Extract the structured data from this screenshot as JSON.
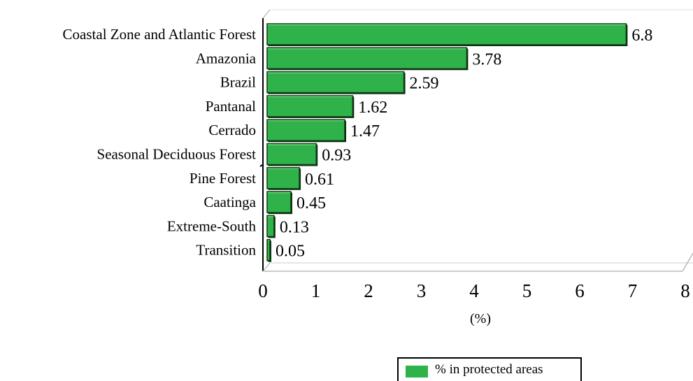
{
  "chart_data": {
    "type": "bar",
    "orientation": "horizontal",
    "categories": [
      "Coastal Zone and Atlantic Forest",
      "Amazonia",
      "Brazil",
      "Pantanal",
      "Cerrado",
      "Seasonal Deciduous Forest",
      "Pine Forest",
      "Caatinga",
      "Extreme-South",
      "Transition"
    ],
    "values": [
      6.8,
      3.78,
      2.59,
      1.62,
      1.47,
      0.93,
      0.61,
      0.45,
      0.13,
      0.05
    ],
    "value_labels": [
      "6.8",
      "3.78",
      "2.59",
      "1.62",
      "1.47",
      "0.93",
      "0.61",
      "0.45",
      "0.13",
      "0.05"
    ],
    "series": [
      {
        "name": "% in protected areas",
        "values": [
          6.8,
          3.78,
          2.59,
          1.62,
          1.47,
          0.93,
          0.61,
          0.45,
          0.13,
          0.05
        ]
      }
    ],
    "xlabel": "(%)",
    "ylabel": "",
    "xlim": [
      0,
      8
    ],
    "xticks": [
      "0",
      "1",
      "2",
      "3",
      "4",
      "5",
      "6",
      "7",
      "8"
    ],
    "grid": false,
    "legend_position": "bottom-center",
    "colors": {
      "bar": "#2fb24a",
      "bar_edge": "#0d3a12"
    }
  }
}
